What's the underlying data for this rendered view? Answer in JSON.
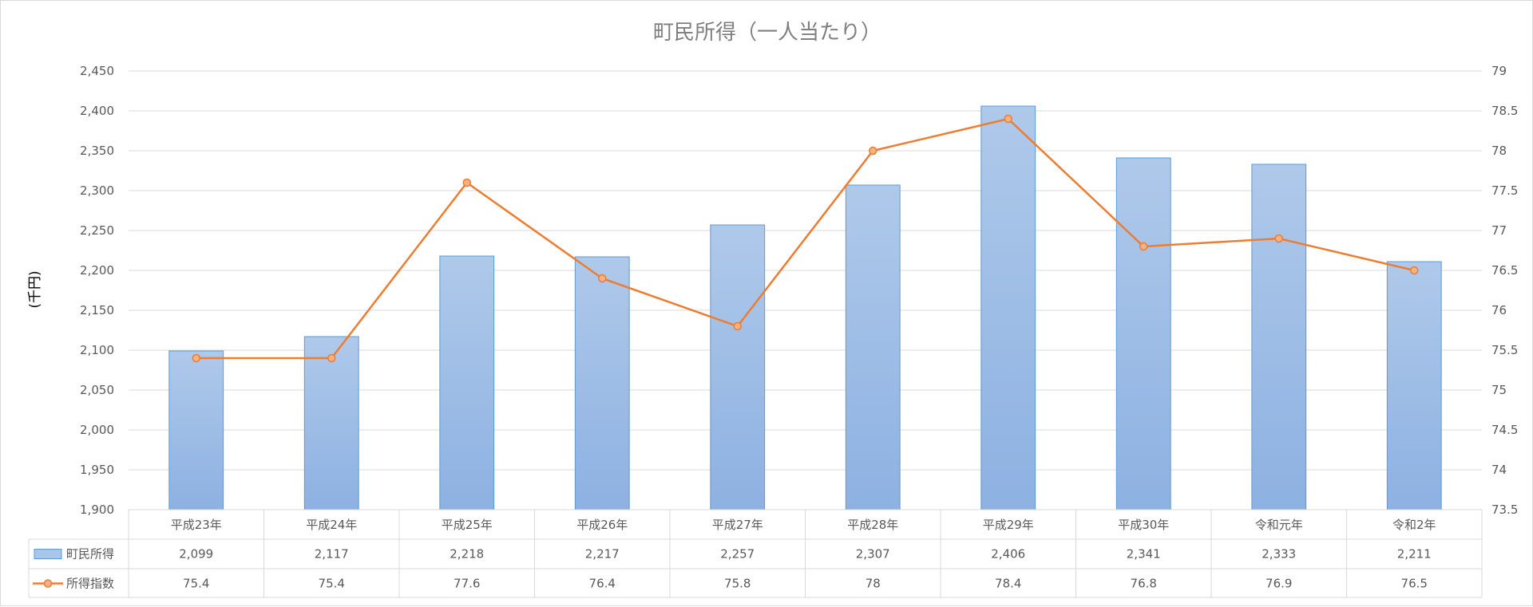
{
  "chart_data": {
    "type": "bar",
    "title": "町民所得（一人当たり）",
    "ylabel": "(千円)",
    "categories": [
      "平成23年",
      "平成24年",
      "平成25年",
      "平成26年",
      "平成27年",
      "平成28年",
      "平成29年",
      "平成30年",
      "令和元年",
      "令和2年"
    ],
    "series": [
      {
        "name": "町民所得",
        "type": "bar",
        "axis": "left",
        "color": "#8fb4e3",
        "values": [
          2099,
          2117,
          2218,
          2217,
          2257,
          2307,
          2406,
          2341,
          2333,
          2211
        ]
      },
      {
        "name": "所得指数",
        "type": "line",
        "axis": "right",
        "color": "#ed7d31",
        "values": [
          75.4,
          75.4,
          77.6,
          76.4,
          75.8,
          78,
          78.4,
          76.8,
          76.9,
          76.5
        ]
      }
    ],
    "y_left": {
      "min": 1900,
      "max": 2450,
      "step": 50,
      "ticks": [
        "1,900",
        "1,950",
        "2,000",
        "2,050",
        "2,100",
        "2,150",
        "2,200",
        "2,250",
        "2,300",
        "2,350",
        "2,400",
        "2,450"
      ]
    },
    "y_right": {
      "min": 73.5,
      "max": 79,
      "step": 0.5,
      "ticks": [
        "73.5",
        "74",
        "74.5",
        "75",
        "75.5",
        "76",
        "76.5",
        "77",
        "77.5",
        "78",
        "78.5",
        "79"
      ]
    },
    "data_table": {
      "rows": [
        {
          "name": "町民所得",
          "cells": [
            "2,099",
            "2,117",
            "2,218",
            "2,217",
            "2,257",
            "2,307",
            "2,406",
            "2,341",
            "2,333",
            "2,211"
          ]
        },
        {
          "name": "所得指数",
          "cells": [
            "75.4",
            "75.4",
            "77.6",
            "76.4",
            "75.8",
            "78",
            "78.4",
            "76.8",
            "76.9",
            "76.5"
          ]
        }
      ]
    },
    "grid": true,
    "legend": "data-table"
  }
}
